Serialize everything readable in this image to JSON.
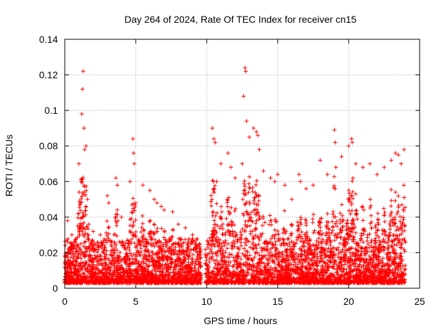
{
  "chart_data": {
    "type": "scatter",
    "title": "Day 264 of 2024, Rate Of TEC Index for receiver cn15",
    "xlabel": "GPS time / hours",
    "ylabel": "ROTI / TECUs",
    "xlim": [
      0,
      25
    ],
    "ylim": [
      0,
      0.14
    ],
    "x_ticks": [
      0,
      5,
      10,
      15,
      20,
      25
    ],
    "x_tick_labels": [
      "0",
      "5",
      "10",
      "15",
      "20",
      "25"
    ],
    "y_ticks": [
      0,
      0.02,
      0.04,
      0.06,
      0.08,
      0.1,
      0.12,
      0.14
    ],
    "y_tick_labels": [
      "0",
      "0.02",
      "0.04",
      "0.06",
      "0.08",
      "0.1",
      "0.12",
      "0.14"
    ],
    "grid": true,
    "marker": "+",
    "color": "#ff0000",
    "data_gap_hours": [
      9.6,
      9.9
    ],
    "series": [
      {
        "name": "ROTI",
        "x": [
          0.2,
          0.3,
          0.5,
          1.0,
          1.2,
          1.25,
          1.3,
          1.35,
          1.4,
          1.5,
          1.6,
          1.7,
          2.0,
          2.5,
          3.0,
          3.1,
          3.6,
          3.7,
          4.0,
          4.6,
          4.8,
          4.85,
          4.9,
          5.0,
          5.5,
          6.0,
          6.3,
          6.5,
          6.8,
          7.0,
          7.6,
          8.0,
          8.5,
          9.0,
          9.5,
          10.4,
          10.5,
          10.6,
          10.7,
          11.0,
          11.5,
          11.7,
          12.0,
          12.5,
          12.6,
          12.7,
          12.75,
          12.8,
          13.0,
          13.3,
          13.5,
          13.6,
          13.7,
          14.0,
          14.5,
          14.8,
          15.0,
          15.5,
          16.0,
          16.5,
          16.6,
          17.0,
          17.5,
          18.0,
          18.5,
          19.0,
          19.05,
          19.1,
          19.5,
          20.0,
          20.2,
          20.25,
          20.3,
          20.5,
          21.0,
          21.5,
          22.0,
          22.5,
          23.0,
          23.3,
          23.5,
          23.7,
          23.9
        ],
        "y": [
          0.038,
          0.02,
          0.03,
          0.07,
          0.098,
          0.112,
          0.122,
          0.09,
          0.078,
          0.08,
          0.05,
          0.036,
          0.032,
          0.03,
          0.052,
          0.048,
          0.062,
          0.058,
          0.04,
          0.06,
          0.084,
          0.076,
          0.07,
          0.048,
          0.058,
          0.055,
          0.05,
          0.048,
          0.046,
          0.044,
          0.043,
          0.036,
          0.034,
          0.03,
          0.025,
          0.09,
          0.084,
          0.082,
          0.06,
          0.07,
          0.076,
          0.068,
          0.062,
          0.07,
          0.108,
          0.124,
          0.122,
          0.094,
          0.085,
          0.09,
          0.088,
          0.086,
          0.078,
          0.066,
          0.062,
          0.06,
          0.064,
          0.058,
          0.05,
          0.064,
          0.06,
          0.056,
          0.058,
          0.072,
          0.064,
          0.089,
          0.082,
          0.068,
          0.074,
          0.08,
          0.084,
          0.082,
          0.062,
          0.07,
          0.068,
          0.07,
          0.064,
          0.068,
          0.072,
          0.076,
          0.075,
          0.07,
          0.078
        ]
      }
    ]
  }
}
